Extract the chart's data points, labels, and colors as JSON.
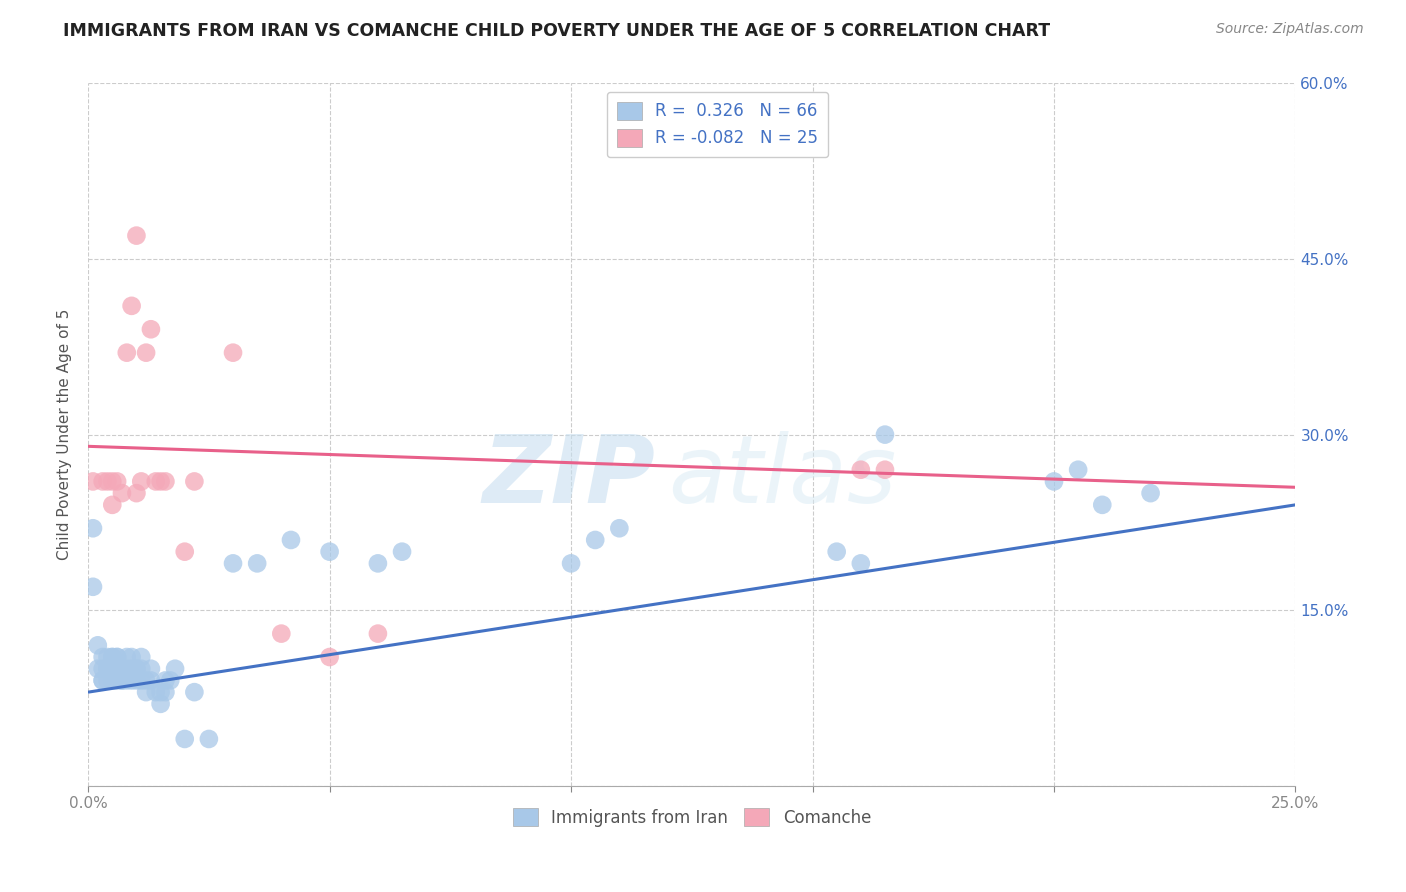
{
  "title": "IMMIGRANTS FROM IRAN VS COMANCHE CHILD POVERTY UNDER THE AGE OF 5 CORRELATION CHART",
  "source": "Source: ZipAtlas.com",
  "ylabel": "Child Poverty Under the Age of 5",
  "x_min": 0.0,
  "x_max": 0.25,
  "y_min": 0.0,
  "y_max": 0.6,
  "x_ticks": [
    0.0,
    0.05,
    0.1,
    0.15,
    0.2,
    0.25
  ],
  "x_tick_labels": [
    "0.0%",
    "",
    "",
    "",
    "",
    "25.0%"
  ],
  "y_ticks_right": [
    0.0,
    0.15,
    0.3,
    0.45,
    0.6
  ],
  "y_tick_labels_right": [
    "",
    "15.0%",
    "30.0%",
    "45.0%",
    "60.0%"
  ],
  "blue_color": "#A8C8E8",
  "pink_color": "#F4A8B8",
  "blue_line_color": "#4472C4",
  "pink_line_color": "#E8608A",
  "legend_R1": "R =  0.326",
  "legend_N1": "N = 66",
  "legend_R2": "R = -0.082",
  "legend_N2": "N = 25",
  "watermark_zip": "ZIP",
  "watermark_atlas": "atlas",
  "blue_scatter_x": [
    0.001,
    0.001,
    0.002,
    0.002,
    0.003,
    0.003,
    0.003,
    0.003,
    0.004,
    0.004,
    0.004,
    0.004,
    0.005,
    0.005,
    0.005,
    0.005,
    0.006,
    0.006,
    0.006,
    0.006,
    0.006,
    0.007,
    0.007,
    0.007,
    0.008,
    0.008,
    0.008,
    0.009,
    0.009,
    0.009,
    0.01,
    0.01,
    0.01,
    0.011,
    0.011,
    0.011,
    0.012,
    0.012,
    0.013,
    0.013,
    0.014,
    0.015,
    0.015,
    0.016,
    0.016,
    0.017,
    0.018,
    0.02,
    0.022,
    0.025,
    0.03,
    0.035,
    0.042,
    0.05,
    0.06,
    0.065,
    0.1,
    0.105,
    0.11,
    0.155,
    0.16,
    0.165,
    0.2,
    0.205,
    0.21,
    0.22
  ],
  "blue_scatter_y": [
    0.22,
    0.17,
    0.12,
    0.1,
    0.11,
    0.1,
    0.09,
    0.09,
    0.1,
    0.09,
    0.1,
    0.11,
    0.09,
    0.1,
    0.11,
    0.11,
    0.09,
    0.1,
    0.1,
    0.11,
    0.11,
    0.09,
    0.09,
    0.1,
    0.1,
    0.11,
    0.09,
    0.09,
    0.1,
    0.11,
    0.09,
    0.1,
    0.1,
    0.09,
    0.1,
    0.11,
    0.08,
    0.09,
    0.09,
    0.1,
    0.08,
    0.07,
    0.08,
    0.08,
    0.09,
    0.09,
    0.1,
    0.04,
    0.08,
    0.04,
    0.19,
    0.19,
    0.21,
    0.2,
    0.19,
    0.2,
    0.19,
    0.21,
    0.22,
    0.2,
    0.19,
    0.3,
    0.26,
    0.27,
    0.24,
    0.25
  ],
  "pink_scatter_x": [
    0.001,
    0.003,
    0.004,
    0.005,
    0.005,
    0.006,
    0.007,
    0.008,
    0.009,
    0.01,
    0.01,
    0.011,
    0.012,
    0.013,
    0.014,
    0.015,
    0.016,
    0.02,
    0.022,
    0.03,
    0.04,
    0.05,
    0.06,
    0.16,
    0.165
  ],
  "pink_scatter_y": [
    0.26,
    0.26,
    0.26,
    0.26,
    0.24,
    0.26,
    0.25,
    0.37,
    0.41,
    0.47,
    0.25,
    0.26,
    0.37,
    0.39,
    0.26,
    0.26,
    0.26,
    0.2,
    0.26,
    0.37,
    0.13,
    0.11,
    0.13,
    0.27,
    0.27
  ],
  "blue_line_x": [
    0.0,
    0.25
  ],
  "blue_line_y": [
    0.08,
    0.24
  ],
  "pink_line_x": [
    0.0,
    0.25
  ],
  "pink_line_y": [
    0.29,
    0.255
  ],
  "figsize": [
    14.06,
    8.92
  ],
  "dpi": 100
}
